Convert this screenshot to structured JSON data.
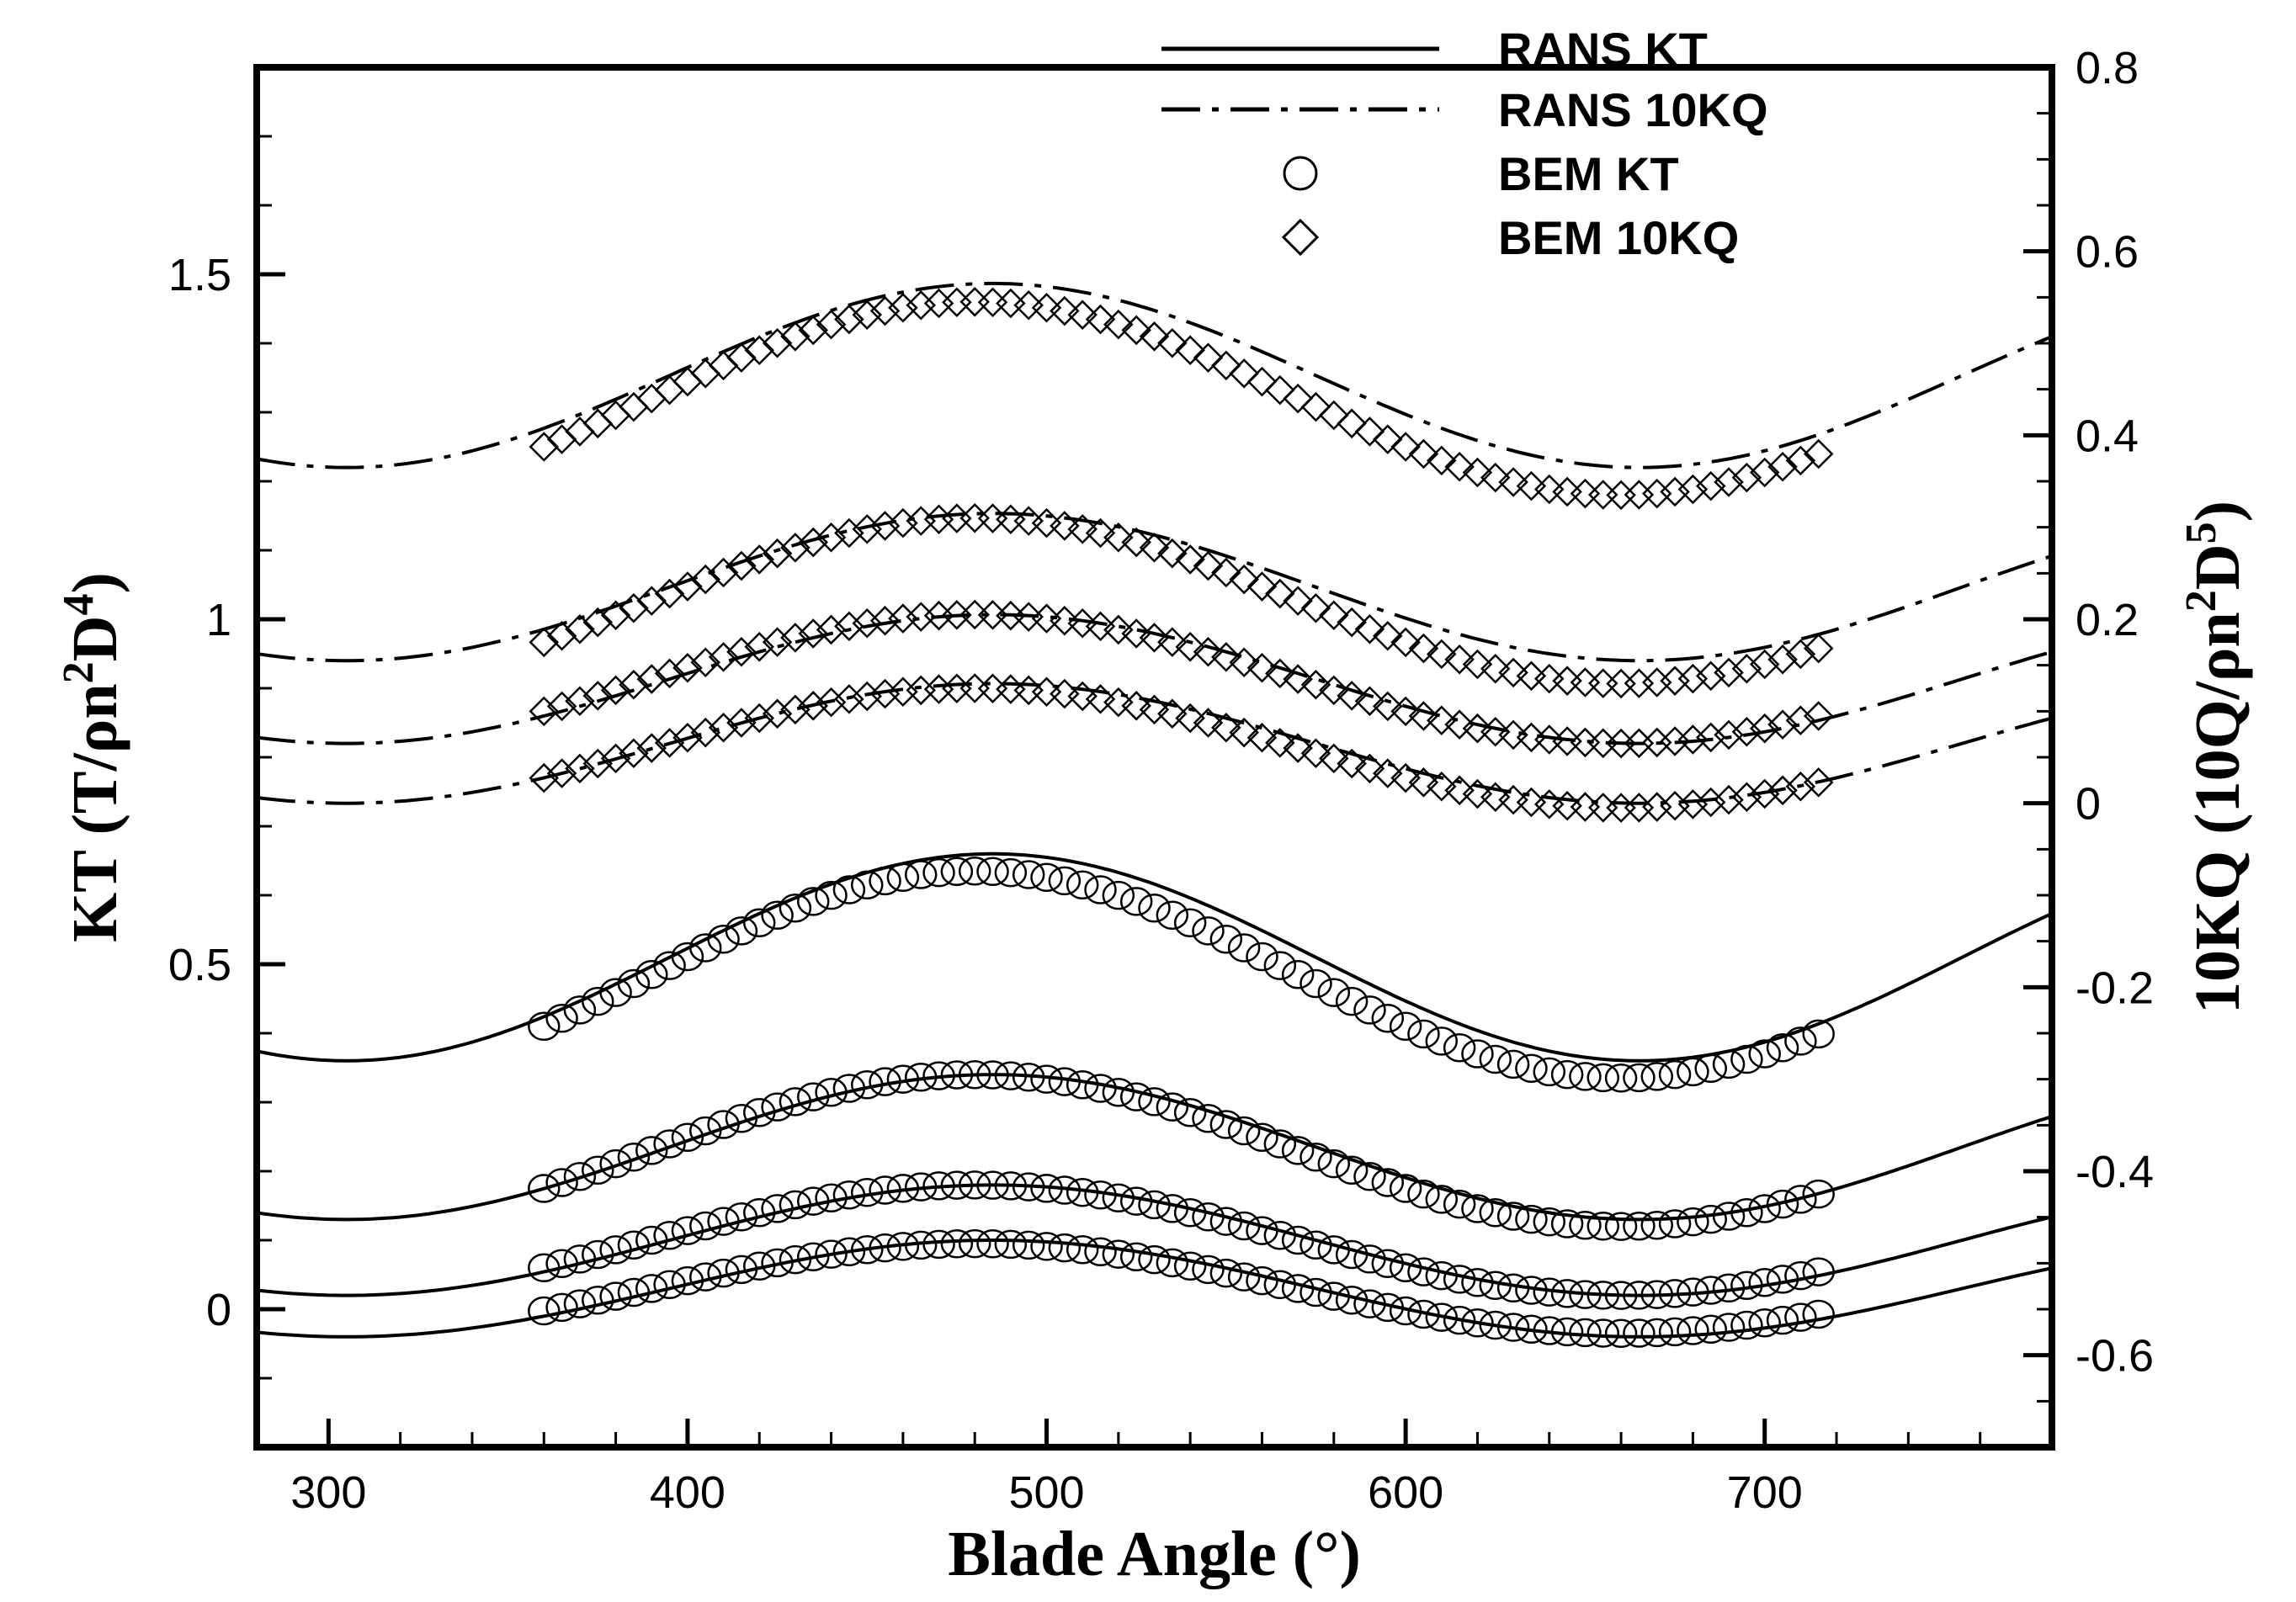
{
  "chart_data": {
    "type": "line",
    "xlabel": "Blade Angle (°)",
    "ylabel_left": {
      "base": "KT (T/ρn",
      "sup1": "2",
      "mid": "D",
      "sup2": "4",
      "end": ")"
    },
    "ylabel_right": {
      "base": "10KQ (10Q/ρn",
      "sup1": "2",
      "mid": "D",
      "sup2": "5",
      "end": ")"
    },
    "xlim": [
      280,
      780
    ],
    "ylim_left": [
      -0.2,
      1.8
    ],
    "ylim_right": [
      -0.7,
      0.8
    ],
    "x_ticks": [
      300,
      400,
      500,
      600,
      700
    ],
    "x_tick_labels": [
      "300",
      "400",
      "500",
      "600",
      "700"
    ],
    "y_left_ticks": [
      0,
      0.5,
      1,
      1.5
    ],
    "y_left_tick_labels": [
      "0",
      "0.5",
      "1",
      "1.5"
    ],
    "y_right_ticks": [
      -0.6,
      -0.4,
      -0.2,
      0,
      0.2,
      0.4,
      0.6,
      0.8
    ],
    "y_right_tick_labels": [
      "-0.6",
      "-0.4",
      "-0.2",
      "0",
      "0.2",
      "0.4",
      "0.6",
      "0.8"
    ],
    "legend": [
      {
        "label": "RANS KT",
        "style": "solid"
      },
      {
        "label": "RANS 10KQ",
        "style": "dashdot"
      },
      {
        "label": "BEM KT",
        "style": "circle"
      },
      {
        "label": "BEM 10KQ",
        "style": "diamond"
      }
    ],
    "rans_kt": [
      {
        "mean": 0.51,
        "amp": 0.15
      },
      {
        "mean": 0.235,
        "amp": 0.105
      },
      {
        "mean": 0.1,
        "amp": 0.08
      },
      {
        "mean": 0.03,
        "amp": 0.07
      }
    ],
    "rans_10kq": [
      {
        "mean": 0.465,
        "amp": 0.1
      },
      {
        "mean": 0.235,
        "amp": 0.08
      },
      {
        "mean": 0.135,
        "amp": 0.07
      },
      {
        "mean": 0.065,
        "amp": 0.065
      }
    ],
    "bem_kt": [
      {
        "mean": 0.485,
        "amp": 0.15
      },
      {
        "mean": 0.23,
        "amp": 0.11
      },
      {
        "mean": 0.1,
        "amp": 0.08
      },
      {
        "mean": 0.03,
        "amp": 0.065
      }
    ],
    "bem_10kq": [
      {
        "mean": 0.44,
        "amp": 0.105
      },
      {
        "mean": 0.22,
        "amp": 0.09
      },
      {
        "mean": 0.135,
        "amp": 0.07
      },
      {
        "mean": 0.06,
        "amp": 0.065
      }
    ],
    "period_deg": 360,
    "peak_angle_rans": 485,
    "peak_angle_bem": 480,
    "bem_x_range": [
      360,
      715
    ],
    "bem_x_step": 5
  }
}
